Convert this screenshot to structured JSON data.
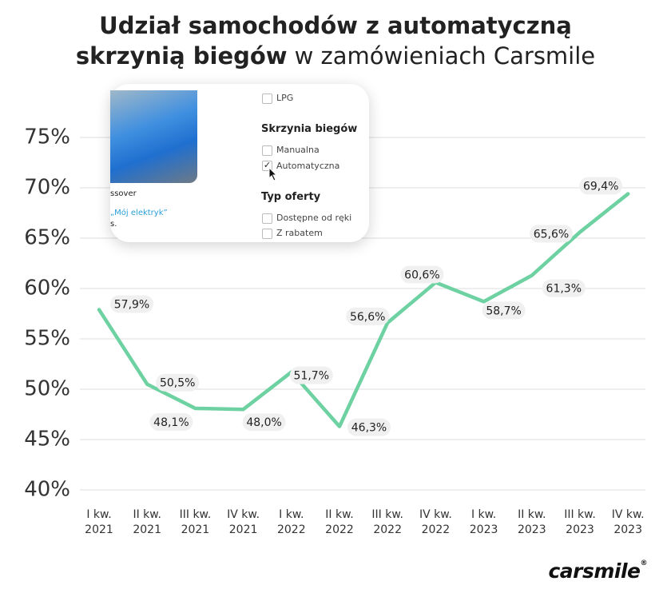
{
  "chart_data": {
    "type": "line",
    "title": [
      "Udział samochodów z automatyczną",
      "skrzynią biegów",
      "w zamówieniach Carsmile"
    ],
    "categories": [
      "I kw. 2021",
      "II kw. 2021",
      "III kw. 2021",
      "IV kw. 2021",
      "I kw. 2022",
      "II kw. 2022",
      "III kw. 2022",
      "IV kw. 2022",
      "I kw. 2023",
      "II kw. 2023",
      "III kw. 2023",
      "IV kw. 2023"
    ],
    "values": [
      57.9,
      50.5,
      48.1,
      48.0,
      51.7,
      46.3,
      56.6,
      60.6,
      58.7,
      61.3,
      65.6,
      69.4
    ],
    "value_labels": [
      "57,9%",
      "50,5%",
      "48,1%",
      "48,0%",
      "51,7%",
      "46,3%",
      "56,6%",
      "60,6%",
      "58,7%",
      "61,3%",
      "65,6%",
      "69,4%"
    ],
    "color": "#6dd1a2",
    "ylim": [
      40,
      75
    ],
    "yticks": [
      {
        "value": 40,
        "label": "40%"
      },
      {
        "value": 45,
        "label": "45%"
      },
      {
        "value": 50,
        "label": "50%"
      },
      {
        "value": 55,
        "label": "55%"
      },
      {
        "value": 60,
        "label": "60%"
      },
      {
        "value": 65,
        "label": "65%"
      },
      {
        "value": 70,
        "label": "70%"
      },
      {
        "value": 75,
        "label": "75%"
      }
    ],
    "grid": true
  },
  "overlay": {
    "lpg": "LPG",
    "gearbox_heading": "Skrzynia biegów",
    "manual": "Manualna",
    "automatic": "Automatyczna",
    "offer_heading": "Typ oferty",
    "available": "Dostępne od ręki",
    "discount": "Z rabatem",
    "card_title": "ssover",
    "card_link": "„Mój elektryk”",
    "card_text": "s."
  },
  "logo": {
    "name": "carsmile",
    "mark": "®"
  }
}
